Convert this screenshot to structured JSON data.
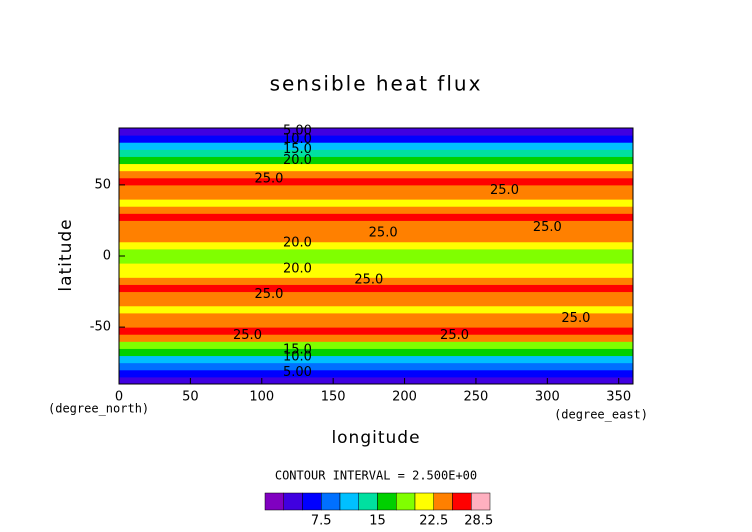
{
  "chart_data": {
    "type": "contour",
    "title": "sensible heat flux",
    "x_label": "longitude",
    "y_label": "latitude",
    "x_units": "(degree_east)",
    "y_units": "(degree_north)",
    "note": "CONTOUR INTERVAL = 2.500E+00",
    "xlim": [
      0,
      360
    ],
    "xticks": [
      0,
      50,
      100,
      150,
      200,
      250,
      300,
      350
    ],
    "ylim": [
      -90,
      90
    ],
    "yticks": [
      -50,
      0,
      50
    ],
    "y": [
      -87.5,
      -82.5,
      -77.5,
      -72.5,
      -67.5,
      -62.5,
      -57.5,
      -52.5,
      -47.5,
      -42.5,
      -37.5,
      -32.5,
      -27.5,
      -22.5,
      -17.5,
      -12.5,
      -7.5,
      -2.5,
      2.5,
      7.5,
      12.5,
      17.5,
      22.5,
      27.5,
      32.5,
      37.5,
      42.5,
      47.5,
      52.5,
      57.5,
      62.5,
      67.5,
      72.5,
      77.5,
      82.5,
      87.5
    ],
    "values": [
      3,
      6,
      9,
      12,
      16,
      19,
      23.5,
      25.5,
      24,
      23,
      21.5,
      23,
      23.5,
      25,
      24,
      22,
      20,
      18,
      18.5,
      20.5,
      22.5,
      23.5,
      24,
      25,
      24,
      21.5,
      23,
      24,
      25.5,
      24,
      21,
      17,
      13,
      10,
      7,
      4
    ],
    "levels": [
      0,
      2.5,
      5,
      7.5,
      10,
      12.5,
      15,
      17.5,
      20,
      22.5,
      25,
      27.5,
      30
    ],
    "colors": [
      "#8000c0",
      "#4000e0",
      "#0000ff",
      "#0070ff",
      "#00c0ff",
      "#00e0a0",
      "#00d000",
      "#80ff00",
      "#ffff00",
      "#ff8000",
      "#ff0000",
      "#ffb0c0"
    ],
    "colorbar_ticks": [
      7.5,
      15,
      22.5,
      28.5
    ],
    "contour_labels": [
      {
        "x": 125,
        "y": 88,
        "value": 5,
        "label": "5.00"
      },
      {
        "x": 125,
        "y": 82,
        "value": 10,
        "label": "10.0"
      },
      {
        "x": 125,
        "y": 75,
        "value": 15,
        "label": "15.0"
      },
      {
        "x": 125,
        "y": 67,
        "value": 20,
        "label": "20.0"
      },
      {
        "x": 105,
        "y": 54,
        "value": 25,
        "label": "25.0"
      },
      {
        "x": 270,
        "y": 46,
        "value": 25,
        "label": "25.0"
      },
      {
        "x": 185,
        "y": 16,
        "value": 25,
        "label": "25.0"
      },
      {
        "x": 300,
        "y": 20,
        "value": 25,
        "label": "25.0"
      },
      {
        "x": 125,
        "y": 9,
        "value": 20,
        "label": "20.0"
      },
      {
        "x": 125,
        "y": -9,
        "value": 20,
        "label": "20.0"
      },
      {
        "x": 175,
        "y": -17,
        "value": 25,
        "label": "25.0"
      },
      {
        "x": 105,
        "y": -27,
        "value": 25,
        "label": "25.0"
      },
      {
        "x": 320,
        "y": -44,
        "value": 25,
        "label": "25.0"
      },
      {
        "x": 90,
        "y": -56,
        "value": 25,
        "label": "25.0"
      },
      {
        "x": 235,
        "y": -56,
        "value": 25,
        "label": "25.0"
      },
      {
        "x": 125,
        "y": -66,
        "value": 15,
        "label": "15.0"
      },
      {
        "x": 125,
        "y": -71,
        "value": 10,
        "label": "10.0"
      },
      {
        "x": 125,
        "y": -82,
        "value": 5,
        "label": "5.00"
      }
    ]
  }
}
